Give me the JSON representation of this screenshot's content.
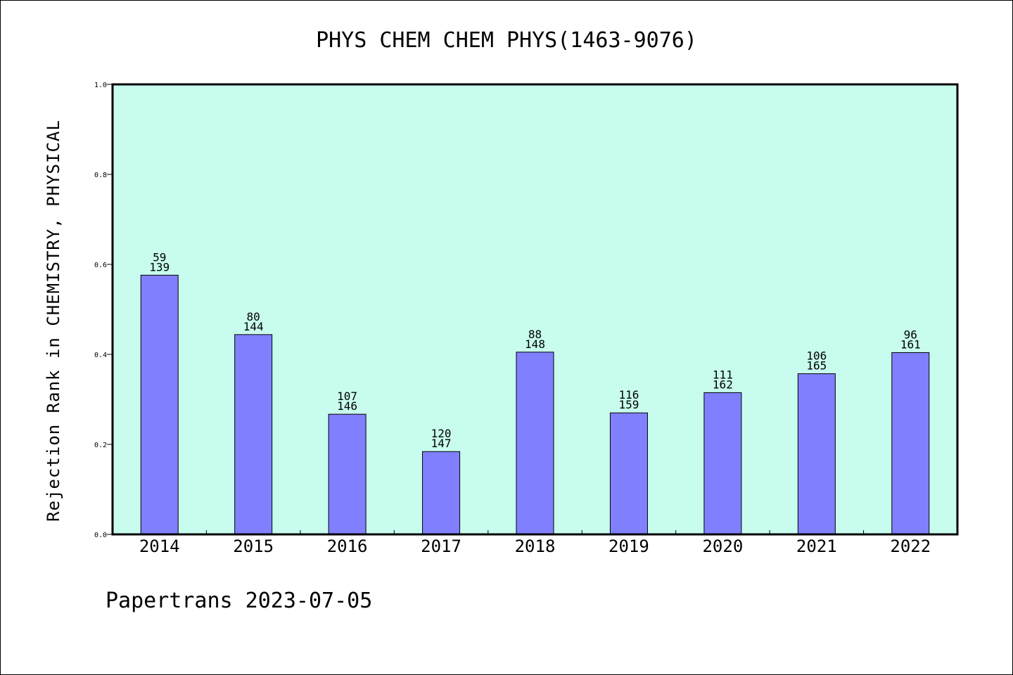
{
  "chart_data": {
    "type": "bar",
    "title": "PHYS CHEM CHEM PHYS(1463-9076)",
    "xlabel": "",
    "ylabel": "Rejection Rank in CHEMISTRY, PHYSICAL",
    "ylim": [
      0.0,
      1.0
    ],
    "yticks": [
      "0.0",
      "0.2",
      "0.4",
      "0.6",
      "0.8",
      "1.0"
    ],
    "categories": [
      "2014",
      "2015",
      "2016",
      "2017",
      "2018",
      "2019",
      "2020",
      "2021",
      "2022"
    ],
    "values": [
      0.576,
      0.444,
      0.267,
      0.184,
      0.405,
      0.27,
      0.315,
      0.357,
      0.404
    ],
    "bar_labels_top": [
      "59",
      "80",
      "107",
      "120",
      "88",
      "116",
      "111",
      "106",
      "96"
    ],
    "bar_labels_bottom": [
      "139",
      "144",
      "146",
      "147",
      "148",
      "159",
      "162",
      "165",
      "161"
    ],
    "grid": false,
    "colors": {
      "bar": "#8080ff",
      "plot_background": "#c8fcee",
      "bar_edge": "#000000"
    }
  },
  "footer": "Papertrans 2023-07-05"
}
